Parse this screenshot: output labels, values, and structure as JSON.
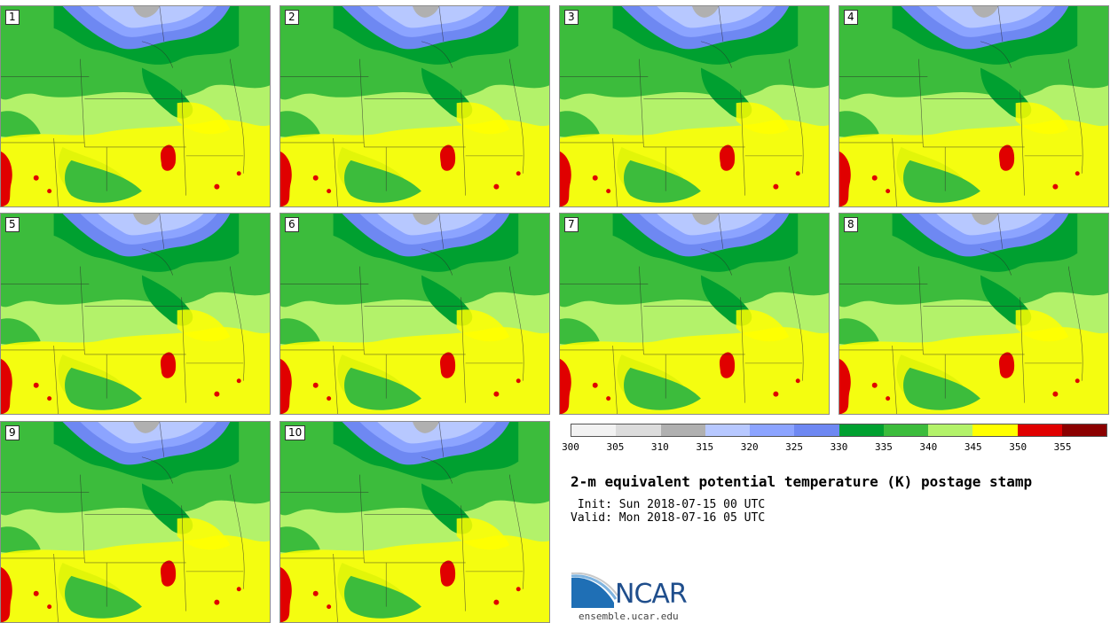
{
  "panels": [
    {
      "number": "1"
    },
    {
      "number": "2"
    },
    {
      "number": "3"
    },
    {
      "number": "4"
    },
    {
      "number": "5"
    },
    {
      "number": "6"
    },
    {
      "number": "7"
    },
    {
      "number": "8"
    },
    {
      "number": "9"
    },
    {
      "number": "10"
    }
  ],
  "colorbar": {
    "colors": [
      "#f2f2f2",
      "#dcdcdc",
      "#b0b0b0",
      "#b7c8ff",
      "#8ca4ff",
      "#6e88f2",
      "#00a030",
      "#3cbc3c",
      "#b3f26a",
      "#ffff00",
      "#e00000",
      "#8b0000"
    ],
    "labels": [
      "300",
      "305",
      "310",
      "315",
      "320",
      "325",
      "330",
      "335",
      "340",
      "345",
      "350",
      "355"
    ]
  },
  "title": "2-m equivalent potential temperature (K) postage stamp",
  "init": " Init: Sun 2018-07-15 00 UTC",
  "valid": "Valid: Mon 2018-07-16 05 UTC",
  "logo_text": "NCAR",
  "site": "ensemble.ucar.edu"
}
